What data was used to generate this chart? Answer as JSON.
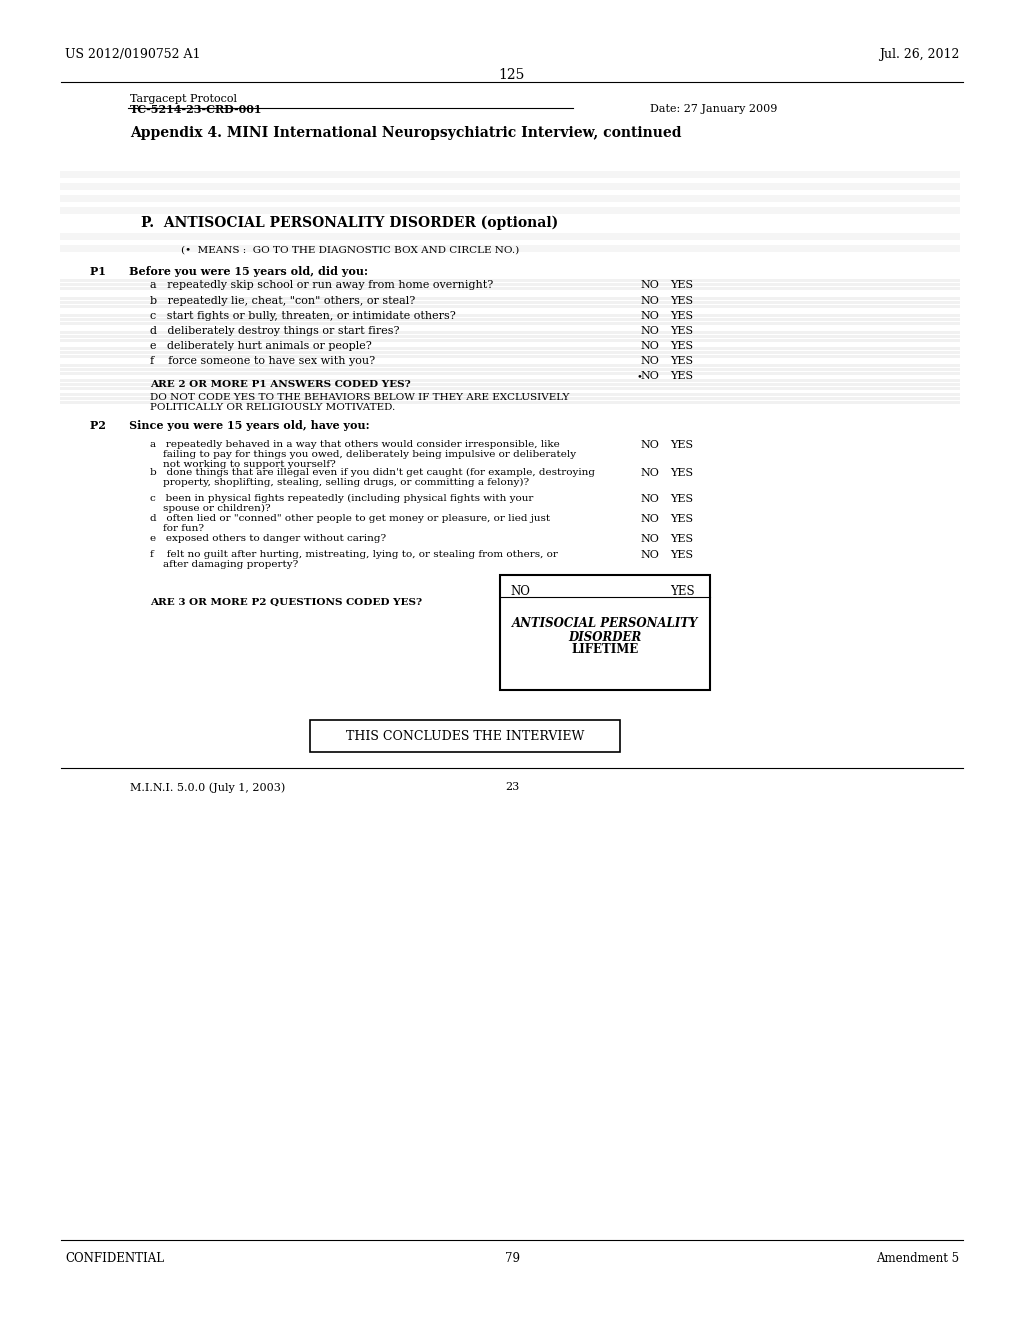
{
  "bg_color": "#ffffff",
  "header_left": "US 2012/0190752 A1",
  "header_right": "Jul. 26, 2012",
  "page_number": "125",
  "protocol_line1": "Targacept Protocol",
  "protocol_line2": "TC-5214-23-CRD-001",
  "protocol_date": "Date: 27 January 2009",
  "appendix_title": "Appendix 4. MINI International Neuropsychiatric Interview, continued",
  "section_title": "P.  ANTISOCIAL PERSONALITY DISORDER (optional)",
  "means_note": "(•  MEANS :  GO TO THE DIAGNOSTIC BOX AND CIRCLE NO.)",
  "p1_header": "P1      Before you were 15 years old, did you:",
  "p1_items": [
    "a   repeatedly skip school or run away from home overnight?",
    "b   repeatedly lie, cheat, \"con\" others, or steal?",
    "c   start fights or bully, threaten, or intimidate others?",
    "d   deliberately destroy things or start fires?",
    "e   deliberately hurt animals or people?",
    "f    force someone to have sex with you?"
  ],
  "p1_extra1": "ARE 2 OR MORE P1 ANSWERS CODED YES?",
  "p1_extra2_line1": "DO NOT CODE YES TO THE BEHAVIORS BELOW IF THEY ARE EXCLUSIVELY",
  "p1_extra2_line2": "POLITICALLY OR RELIGIOUSLY MOTIVATED.",
  "p2_header": "P2      Since you were 15 years old, have you:",
  "p2_items": [
    [
      "a   repeatedly behaved in a way that others would consider irresponsible, like\n    failing to pay for things you owed, deliberately being impulsive or deliberately\n    not working to support yourself?",
      false
    ],
    [
      "b   done things that are illegal even if you didn't get caught (for example, destroying\n    property, shoplifting, stealing, selling drugs, or committing a felony)?",
      false
    ],
    [
      "c   been in physical fights repeatedly (including physical fights with your\n    spouse or children)?",
      false
    ],
    [
      "d   often lied or \"conned\" other people to get money or pleasure, or lied just\n    for fun?",
      false
    ],
    [
      "e   exposed others to danger without caring?",
      false
    ],
    [
      "f    felt no guilt after hurting, mistreating, lying to, or stealing from others, or\n    after damaging property?",
      false
    ]
  ],
  "p2_question": "ARE 3 OR MORE P2 QUESTIONS CODED YES?",
  "box_no": "NO",
  "box_yes": "YES",
  "box_content_line1": "ANTISOCIAL PERSONALITY",
  "box_content_line2": "DISORDER",
  "box_content_line3": "LIFETIME",
  "concludes_text": "THIS CONCLUDES THE INTERVIEW",
  "footer_left": "M.I.N.I. 5.0.0 (July 1, 2003)",
  "footer_center": "23",
  "bottom_left": "CONFIDENTIAL",
  "bottom_center": "79",
  "bottom_right": "Amendment 5"
}
